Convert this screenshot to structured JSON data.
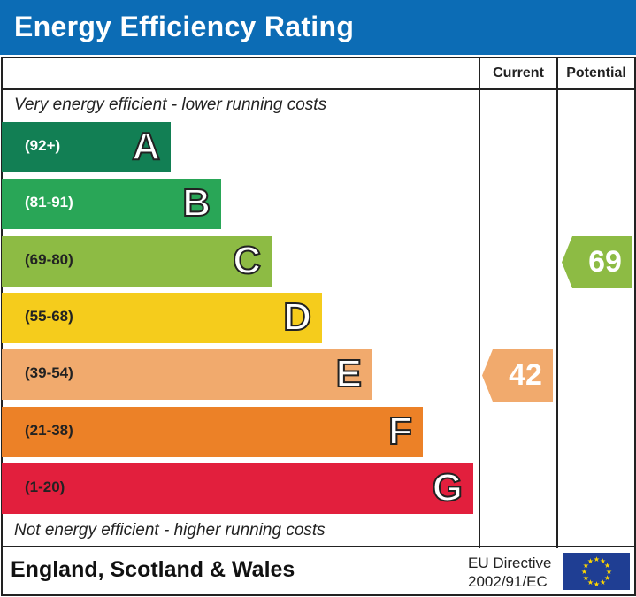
{
  "title": "Energy Efficiency Rating",
  "chart_data": {
    "type": "table",
    "columns": [
      "Current",
      "Potential"
    ],
    "top_note": "Very energy efficient - lower running costs",
    "bottom_note": "Not energy efficient - higher running costs",
    "bands": [
      {
        "letter": "A",
        "range": "(92+)",
        "color": "#127f54",
        "text_color": "#ffffff"
      },
      {
        "letter": "B",
        "range": "(81-91)",
        "color": "#29a657",
        "text_color": "#ffffff"
      },
      {
        "letter": "C",
        "range": "(69-80)",
        "color": "#8dbb44",
        "text_color": "#222222"
      },
      {
        "letter": "D",
        "range": "(55-68)",
        "color": "#f5cc1c",
        "text_color": "#222222"
      },
      {
        "letter": "E",
        "range": "(39-54)",
        "color": "#f1aa6d",
        "text_color": "#222222"
      },
      {
        "letter": "F",
        "range": "(21-38)",
        "color": "#ec8127",
        "text_color": "#222222"
      },
      {
        "letter": "G",
        "range": "(1-20)",
        "color": "#e21f3d",
        "text_color": "#222222"
      }
    ],
    "current": {
      "value": 42,
      "band": "E",
      "color": "#f1aa6d"
    },
    "potential": {
      "value": 69,
      "band": "C",
      "color": "#8dbb44"
    }
  },
  "footer": {
    "country": "England, Scotland & Wales",
    "directive_line1": "EU Directive",
    "directive_line2": "2002/91/EC"
  }
}
